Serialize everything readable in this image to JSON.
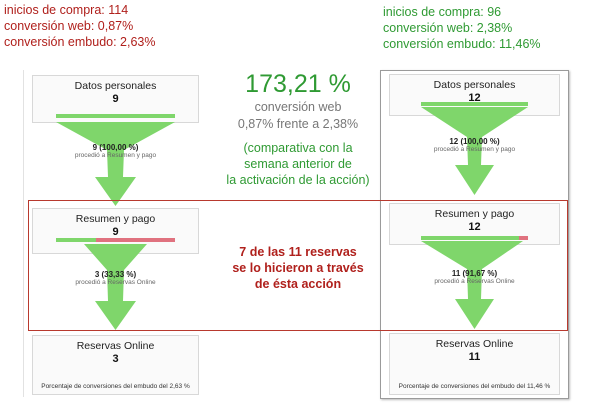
{
  "left_notes": {
    "line1": "inicios de compra: 114",
    "line2": "conversión web: 0,87%",
    "line3": "conversión embudo: 2,63%"
  },
  "right_notes": {
    "line1": "inicios de compra: 96",
    "line2": "conversión web: 2,38%",
    "line3": "conversión embudo: 11,46%"
  },
  "center": {
    "big_value": "173,21 %",
    "big_label": "conversión web",
    "comparison": "0,87% frente a 2,38%",
    "note_line1": "(comparativa con la",
    "note_line2": "semana anterior de",
    "note_line3": "la activación de la acción)",
    "callout_line1": "7 de las 11 reservas",
    "callout_line2": "se lo hicieron a través",
    "callout_line3": "de ésta acción"
  },
  "left_funnel": {
    "step1": {
      "name": "Datos personales",
      "count": "9"
    },
    "proc1": {
      "main": "9 (100,00 %)",
      "sub": "procedió a Resumen y pago"
    },
    "step2": {
      "name": "Resumen y pago",
      "count": "9"
    },
    "proc2": {
      "main": "3 (33,33 %)",
      "sub": "procedió a Reservas Online"
    },
    "step3": {
      "name": "Reservas Online",
      "count": "3"
    },
    "footer": "Porcentaje de conversiones del embudo del 2,63 %",
    "bar1_fill": 1.0,
    "bar2_fill": 0.3333
  },
  "right_funnel": {
    "step1": {
      "name": "Datos personales",
      "count": "12"
    },
    "proc1": {
      "main": "12 (100,00 %)",
      "sub": "procedió a Resumen y pago"
    },
    "step2": {
      "name": "Resumen y pago",
      "count": "12"
    },
    "proc2": {
      "main": "11 (91,67 %)",
      "sub": "procedió a Reservas Online"
    },
    "step3": {
      "name": "Reservas Online",
      "count": "11"
    },
    "footer": "Porcentaje de conversiones del embudo del 11,46 %",
    "bar1_fill": 1.0,
    "bar2_fill": 0.9167
  },
  "colors": {
    "red_text": "#b0201c",
    "green_text": "#2f9a33",
    "funnel_green": "#7fd66b",
    "drop_red": "#e0727f",
    "highlight_border": "#b8392e"
  }
}
